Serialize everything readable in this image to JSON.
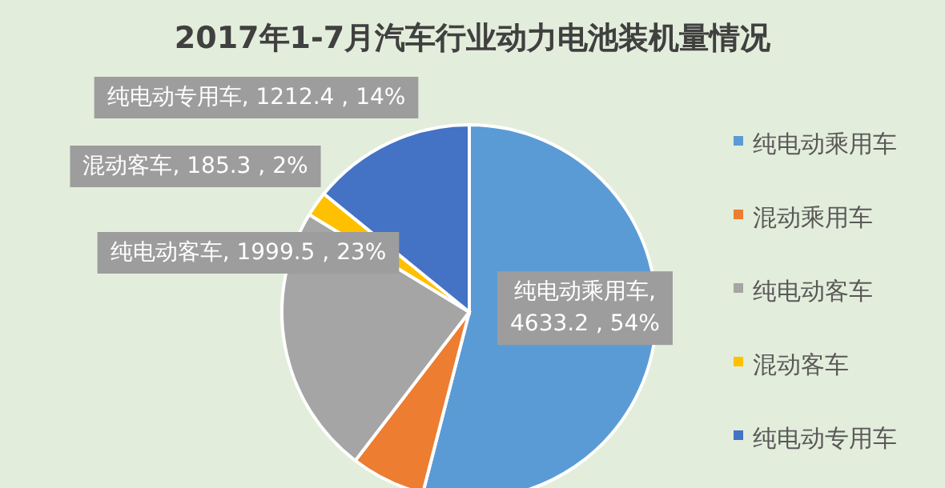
{
  "chart_data": {
    "type": "pie",
    "title": "2017年1-7月汽车行业动力电池装机量情况",
    "categories": [
      "纯电动乘用车",
      "混动乘用车",
      "纯电动客车",
      "混动客车",
      "纯电动专用车"
    ],
    "values": [
      4633.2,
      550,
      1999.5,
      185.3,
      1212.4
    ],
    "colors": [
      "#5b9bd5",
      "#ed7d31",
      "#a5a5a5",
      "#ffc000",
      "#4472c4"
    ],
    "value_labels": [
      "纯电动乘用车, 4633.2 , 54%",
      null,
      "纯电动客车, 1999.5 , 23%",
      "混动客车, 185.3 , 2%",
      "纯电动专用车, 1212.4 , 14%"
    ],
    "legend": "right"
  }
}
